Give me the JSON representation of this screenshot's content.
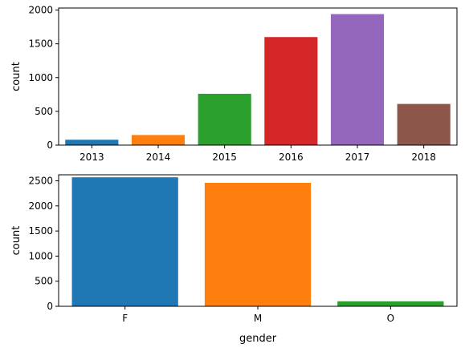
{
  "chart_data": [
    {
      "type": "bar",
      "categories": [
        "2013",
        "2014",
        "2015",
        "2016",
        "2017",
        "2018"
      ],
      "values": [
        80,
        150,
        760,
        1600,
        1940,
        610
      ],
      "colors": [
        "#1f77b4",
        "#ff7f0e",
        "#2ca02c",
        "#d62728",
        "#9467bd",
        "#8c564b"
      ],
      "xlabel": "",
      "ylabel": "count",
      "ylim": [
        0,
        2030
      ],
      "yticks": [
        0,
        500,
        1000,
        1500,
        2000
      ],
      "grid": false,
      "legend": "none"
    },
    {
      "type": "bar",
      "categories": [
        "F",
        "M",
        "O"
      ],
      "values": [
        2570,
        2460,
        100
      ],
      "colors": [
        "#1f77b4",
        "#ff7f0e",
        "#2ca02c"
      ],
      "xlabel": "gender",
      "ylabel": "count",
      "ylim": [
        0,
        2620
      ],
      "yticks": [
        0,
        500,
        1000,
        1500,
        2000,
        2500
      ],
      "grid": false,
      "legend": "none"
    }
  ]
}
